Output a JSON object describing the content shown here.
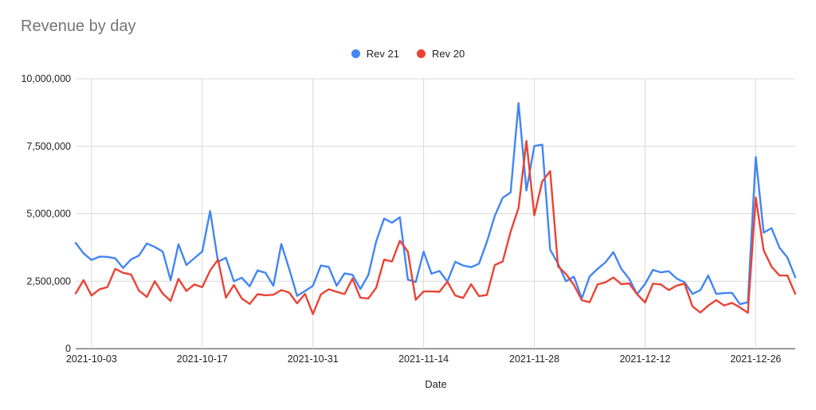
{
  "chart_data": {
    "type": "line",
    "title": "Revenue by day",
    "xlabel": "Date",
    "ylabel": "",
    "ylim": [
      0,
      10000000
    ],
    "yticks": [
      0,
      2500000,
      5000000,
      7500000,
      10000000
    ],
    "ytick_labels": [
      "0",
      "2,500,000",
      "5,000,000",
      "7,500,000",
      "10,000,000"
    ],
    "x_start": "2021-10-01",
    "x_end": "2021-12-31",
    "xtick_labels": [
      "2021-10-03",
      "2021-10-17",
      "2021-10-31",
      "2021-11-14",
      "2021-11-28",
      "2021-12-12",
      "2021-12-26"
    ],
    "grid": true,
    "legend_position": "top",
    "series": [
      {
        "name": "Rev 21",
        "color": "#4285f4",
        "values": [
          3920000,
          3530000,
          3290000,
          3410000,
          3400000,
          3350000,
          2990000,
          3310000,
          3450000,
          3900000,
          3770000,
          3600000,
          2540000,
          3870000,
          3100000,
          3350000,
          3600000,
          5100000,
          3220000,
          3370000,
          2500000,
          2630000,
          2310000,
          2900000,
          2810000,
          2330000,
          3880000,
          2960000,
          1960000,
          2140000,
          2330000,
          3080000,
          3030000,
          2330000,
          2790000,
          2740000,
          2210000,
          2730000,
          3980000,
          4820000,
          4670000,
          4870000,
          2560000,
          2470000,
          3600000,
          2780000,
          2880000,
          2490000,
          3220000,
          3080000,
          3020000,
          3150000,
          3960000,
          4920000,
          5590000,
          5790000,
          9100000,
          5860000,
          7510000,
          7560000,
          3670000,
          3150000,
          2500000,
          2670000,
          1860000,
          2680000,
          2960000,
          3200000,
          3580000,
          2960000,
          2590000,
          2020000,
          2400000,
          2920000,
          2830000,
          2870000,
          2600000,
          2460000,
          2030000,
          2170000,
          2710000,
          2030000,
          2060000,
          2070000,
          1650000,
          1720000,
          7100000,
          4300000,
          4470000,
          3740000,
          3380000,
          2650000
        ]
      },
      {
        "name": "Rev 20",
        "color": "#ea4335",
        "values": [
          2050000,
          2540000,
          1970000,
          2200000,
          2280000,
          2960000,
          2810000,
          2750000,
          2150000,
          1920000,
          2500000,
          2040000,
          1770000,
          2590000,
          2140000,
          2380000,
          2280000,
          2900000,
          3300000,
          1890000,
          2360000,
          1860000,
          1660000,
          2020000,
          1980000,
          2000000,
          2170000,
          2080000,
          1680000,
          2030000,
          1280000,
          2010000,
          2200000,
          2110000,
          2020000,
          2600000,
          1890000,
          1860000,
          2260000,
          3300000,
          3230000,
          4000000,
          3600000,
          1810000,
          2120000,
          2120000,
          2110000,
          2480000,
          1970000,
          1880000,
          2390000,
          1950000,
          1990000,
          3100000,
          3230000,
          4340000,
          5210000,
          7700000,
          4940000,
          6200000,
          6580000,
          3050000,
          2770000,
          2360000,
          1800000,
          1720000,
          2380000,
          2460000,
          2640000,
          2390000,
          2420000,
          2020000,
          1710000,
          2410000,
          2380000,
          2170000,
          2340000,
          2410000,
          1570000,
          1340000,
          1600000,
          1800000,
          1600000,
          1700000,
          1530000,
          1330000,
          5600000,
          3650000,
          3040000,
          2710000,
          2710000,
          2030000
        ]
      }
    ]
  }
}
